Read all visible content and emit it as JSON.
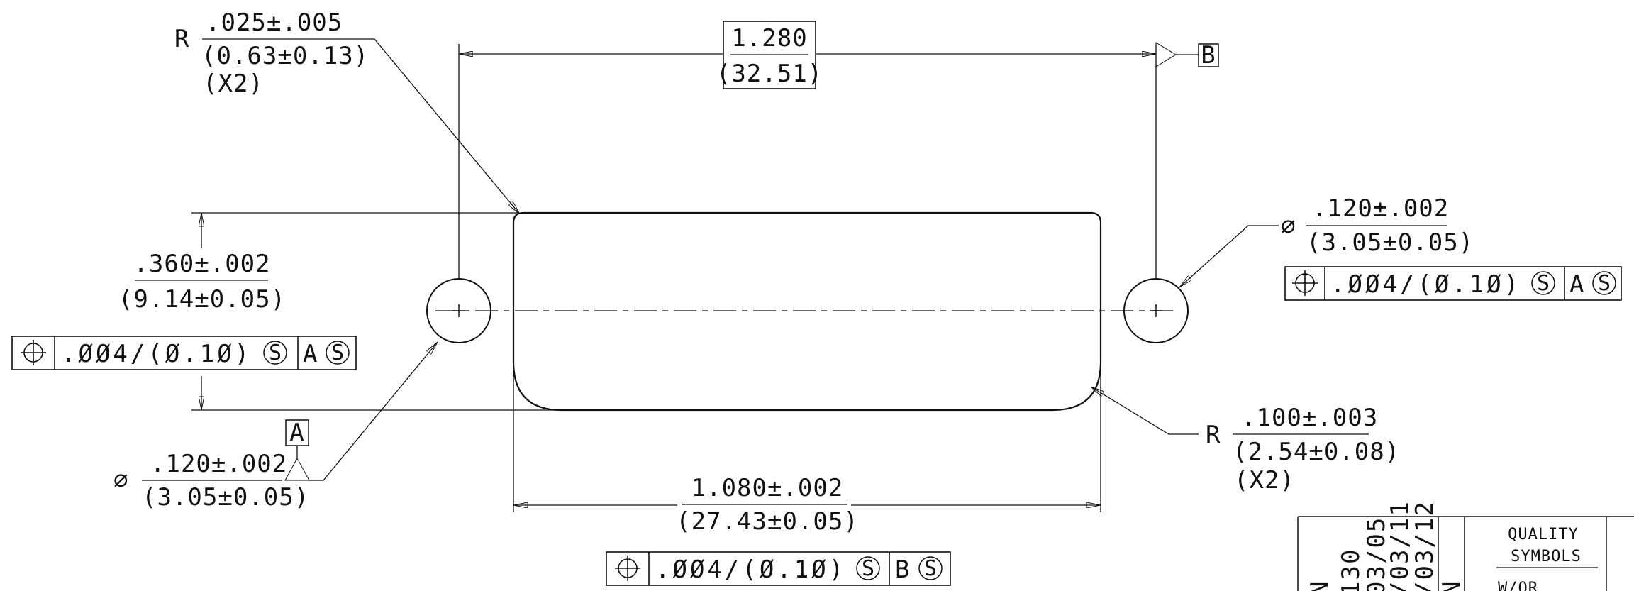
{
  "top_radius": {
    "prefix": "R",
    "inch": ".025±.005",
    "metric": "(0.63±0.13)",
    "count": "(X2)"
  },
  "top_length": {
    "inch": "1.280",
    "metric": "(32.51)"
  },
  "datum_b": "B",
  "datum_a": "A",
  "right_hole": {
    "prefix": "∅",
    "inch": ".120±.002",
    "metric": "(3.05±0.05)",
    "fcf": {
      "tolerance": ".ØØ4/(Ø.1Ø)",
      "modifier": "S",
      "datum": "A",
      "datum_modifier": "S"
    }
  },
  "height": {
    "inch": ".360±.002",
    "metric": "(9.14±0.05)"
  },
  "left_fcf": {
    "tolerance": ".ØØ4/(Ø.1Ø)",
    "modifier": "S",
    "datum": "A",
    "datum_modifier": "S"
  },
  "left_hole": {
    "prefix": "∅",
    "inch": ".120±.002",
    "metric": "(3.05±0.05)"
  },
  "bottom_radius": {
    "prefix": "R",
    "inch": ".100±.003",
    "metric": "(2.54±0.08)",
    "count": "(X2)"
  },
  "bottom_length": {
    "inch": "1.080±.002",
    "metric": "(27.43±0.05)"
  },
  "bottom_fcf": {
    "tolerance": ".ØØ4/(Ø.1Ø)",
    "modifier": "S",
    "datum": "B",
    "datum_modifier": "S"
  },
  "title_block": {
    "rotated_col1": "N",
    "rotated_col2": "130",
    "rotated_col3": "03/05",
    "rotated_col4": "/03/11",
    "rotated_col5": "/03/12",
    "rotated_col6": "N",
    "quality_line1": "QUALITY",
    "quality_line2": "SYMBOLS",
    "quality_line3": "W/OR"
  }
}
